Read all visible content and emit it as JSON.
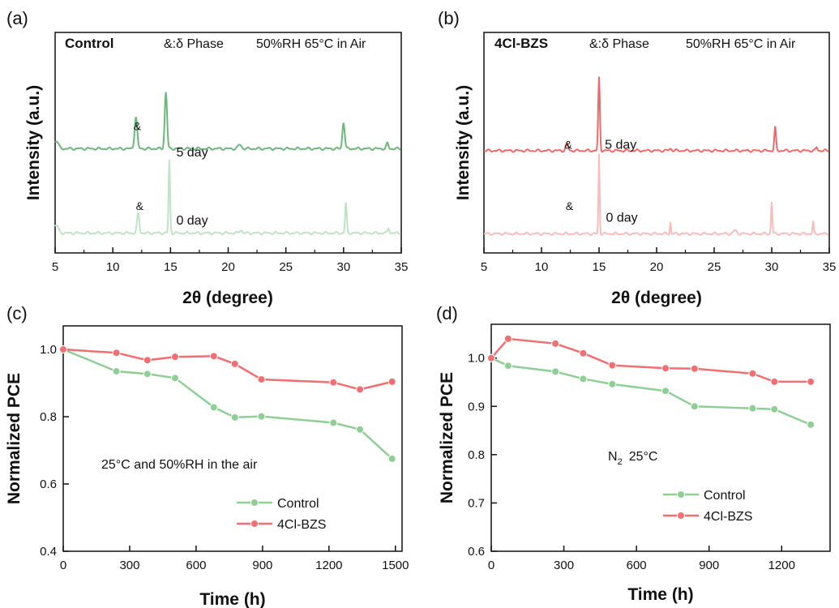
{
  "chart_data": [
    {
      "panel": "(a)",
      "type": "line",
      "sample_label": "Control",
      "sample_color": "#7cc487",
      "phase_note": "&:δ Phase",
      "condition": "50%RH 65°C in Air",
      "xlabel": "2θ (degree)",
      "ylabel": "Intensity (a.u.)",
      "xlim": [
        5,
        35
      ],
      "xticks": [
        "5",
        "10",
        "15",
        "20",
        "25",
        "30",
        "35"
      ],
      "series": [
        {
          "name": "5 day",
          "color": "#6ab87a",
          "offset": 1.0,
          "baseline": 0.05,
          "peaks": [
            [
              5.1,
              0.12,
              0.25
            ],
            [
              12.0,
              0.48,
              0.16
            ],
            [
              14.6,
              0.85,
              0.14
            ],
            [
              21.0,
              0.06,
              0.2
            ],
            [
              30.0,
              0.4,
              0.14
            ],
            [
              33.8,
              0.08,
              0.12
            ]
          ]
        },
        {
          "name": "0 day",
          "color": "#bfe3c4",
          "offset": 0.0,
          "baseline": 0.03,
          "peaks": [
            [
              5.1,
              0.12,
              0.25
            ],
            [
              12.2,
              0.3,
              0.14
            ],
            [
              14.9,
              1.1,
              0.09
            ],
            [
              21.1,
              0.05,
              0.15
            ],
            [
              30.2,
              0.45,
              0.1
            ],
            [
              33.9,
              0.08,
              0.1
            ]
          ]
        }
      ],
      "annotations": [
        {
          "text": "&",
          "x": 11.8,
          "level": 1.58
        },
        {
          "text": "5 day",
          "x": 15.5,
          "level": 1.18
        },
        {
          "text": "&",
          "x": 12.0,
          "level": 0.38
        },
        {
          "text": "0 day",
          "x": 15.5,
          "level": 0.16
        }
      ]
    },
    {
      "panel": "(b)",
      "type": "line",
      "sample_label": "4Cl-BZS",
      "sample_color": "#ef6f72",
      "phase_note": "&:δ Phase",
      "condition": "50%RH 65°C in Air",
      "xlabel": "2θ (degree)",
      "ylabel": "Intensity (a.u.)",
      "xlim": [
        5,
        35
      ],
      "xticks": [
        "5",
        "10",
        "15",
        "20",
        "25",
        "30",
        "35"
      ],
      "series": [
        {
          "name": "5 day",
          "color": "#ec6a6c",
          "offset": 1.0,
          "baseline": 0.02,
          "peaks": [
            [
              12.2,
              0.1,
              0.15
            ],
            [
              15.0,
              1.1,
              0.1
            ],
            [
              21.2,
              0.03,
              0.15
            ],
            [
              30.3,
              0.35,
              0.1
            ],
            [
              33.9,
              0.05,
              0.1
            ]
          ]
        },
        {
          "name": "0 day",
          "color": "#f7bcbc",
          "offset": 0.0,
          "baseline": 0.02,
          "peaks": [
            [
              15.0,
              1.2,
              0.07
            ],
            [
              21.2,
              0.18,
              0.06
            ],
            [
              26.8,
              0.05,
              0.2
            ],
            [
              30.0,
              0.48,
              0.08
            ],
            [
              33.6,
              0.18,
              0.07
            ]
          ]
        }
      ],
      "annotations": [
        {
          "text": "&",
          "x": 12.0,
          "level": 1.3
        },
        {
          "text": "5 day",
          "x": 15.5,
          "level": 1.3
        },
        {
          "text": "&",
          "x": 12.1,
          "level": 0.38
        },
        {
          "text": "0 day",
          "x": 15.6,
          "level": 0.2
        }
      ]
    },
    {
      "panel": "(c)",
      "type": "line",
      "xlabel": "Time (h)",
      "ylabel": "Normalized PCE",
      "xlim": [
        0,
        1530
      ],
      "ylim": [
        0.4,
        1.07
      ],
      "xticks": [
        0,
        300,
        600,
        900,
        1200,
        1500
      ],
      "yticks": [
        0.4,
        0.6,
        0.8,
        1.0
      ],
      "ytick_labels": [
        "0.4",
        "0.6",
        "0.8",
        "1.0"
      ],
      "note": "25°C and 50%RH in the air",
      "legend_position": "lower-right",
      "series": [
        {
          "name": "Control",
          "color": "#8fcf95",
          "x": [
            0,
            240,
            380,
            505,
            680,
            775,
            895,
            1220,
            1340,
            1485
          ],
          "y": [
            1.0,
            0.935,
            0.927,
            0.915,
            0.828,
            0.798,
            0.801,
            0.782,
            0.762,
            0.675
          ]
        },
        {
          "name": "4Cl-BZS",
          "color": "#ef6f72",
          "x": [
            0,
            240,
            380,
            505,
            680,
            775,
            895,
            1220,
            1340,
            1485
          ],
          "y": [
            1.0,
            0.99,
            0.968,
            0.978,
            0.98,
            0.957,
            0.911,
            0.902,
            0.881,
            0.904
          ]
        }
      ]
    },
    {
      "panel": "(d)",
      "type": "line",
      "xlabel": "Time (h)",
      "ylabel": "Normalized PCE",
      "xlim": [
        0,
        1400
      ],
      "ylim": [
        0.6,
        1.07
      ],
      "xticks": [
        0,
        300,
        600,
        900,
        1200
      ],
      "yticks": [
        0.6,
        0.7,
        0.8,
        0.9,
        1.0
      ],
      "ytick_labels": [
        "0.6",
        "0.7",
        "0.8",
        "0.9",
        "1.0"
      ],
      "note_main": "N",
      "note_sub": "2",
      "note_rest": "25°C",
      "legend_position": "lower-right",
      "series": [
        {
          "name": "Control",
          "color": "#8fcf95",
          "x": [
            0,
            70,
            265,
            380,
            500,
            720,
            840,
            1080,
            1170,
            1320
          ],
          "y": [
            1.0,
            0.984,
            0.972,
            0.957,
            0.946,
            0.932,
            0.9,
            0.896,
            0.894,
            0.862
          ]
        },
        {
          "name": "4Cl-BZS",
          "color": "#ef6f72",
          "x": [
            0,
            70,
            265,
            380,
            500,
            720,
            840,
            1080,
            1170,
            1320
          ],
          "y": [
            1.0,
            1.04,
            1.03,
            1.01,
            0.985,
            0.979,
            0.978,
            0.968,
            0.951,
            0.951
          ]
        }
      ]
    }
  ]
}
